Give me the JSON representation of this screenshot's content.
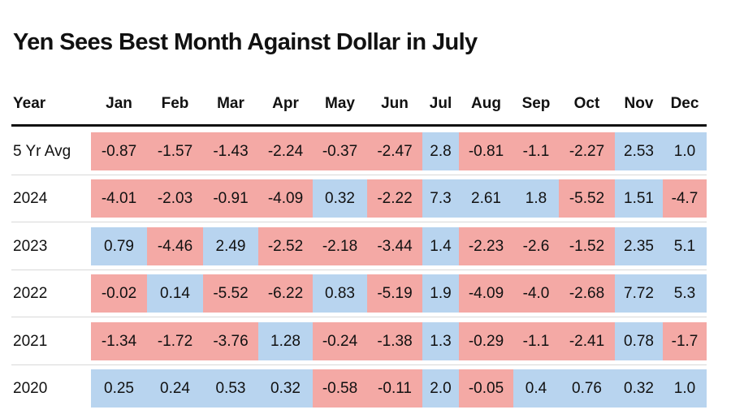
{
  "title": "Yen Sees Best Month Against Dollar in July",
  "colors": {
    "positive": "#b8d4ef",
    "negative": "#f4a9a5"
  },
  "chart_data": {
    "type": "table",
    "title": "Yen Sees Best Month Against Dollar in July",
    "header_label": "Year",
    "columns": [
      "Jan",
      "Feb",
      "Mar",
      "Apr",
      "May",
      "Jun",
      "Jul",
      "Aug",
      "Sep",
      "Oct",
      "Nov",
      "Dec"
    ],
    "rows": [
      {
        "label": "5 Yr Avg",
        "values": [
          "-0.87",
          "-1.57",
          "-1.43",
          "-2.24",
          "-0.37",
          "-2.47",
          "2.8",
          "-0.81",
          "-1.1",
          "-2.27",
          "2.53",
          "1.0"
        ]
      },
      {
        "label": "2024",
        "values": [
          "-4.01",
          "-2.03",
          "-0.91",
          "-4.09",
          "0.32",
          "-2.22",
          "7.3",
          "2.61",
          "1.8",
          "-5.52",
          "1.51",
          "-4.7"
        ]
      },
      {
        "label": "2023",
        "values": [
          "0.79",
          "-4.46",
          "2.49",
          "-2.52",
          "-2.18",
          "-3.44",
          "1.4",
          "-2.23",
          "-2.6",
          "-1.52",
          "2.35",
          "5.1"
        ]
      },
      {
        "label": "2022",
        "values": [
          "-0.02",
          "0.14",
          "-5.52",
          "-6.22",
          "0.83",
          "-5.19",
          "1.9",
          "-4.09",
          "-4.0",
          "-2.68",
          "7.72",
          "5.3"
        ]
      },
      {
        "label": "2021",
        "values": [
          "-1.34",
          "-1.72",
          "-3.76",
          "1.28",
          "-0.24",
          "-1.38",
          "1.3",
          "-0.29",
          "-1.1",
          "-2.41",
          "0.78",
          "-1.7"
        ]
      },
      {
        "label": "2020",
        "values": [
          "0.25",
          "0.24",
          "0.53",
          "0.32",
          "-0.58",
          "-0.11",
          "2.0",
          "-0.05",
          "0.4",
          "0.76",
          "0.32",
          "1.0"
        ]
      }
    ]
  }
}
